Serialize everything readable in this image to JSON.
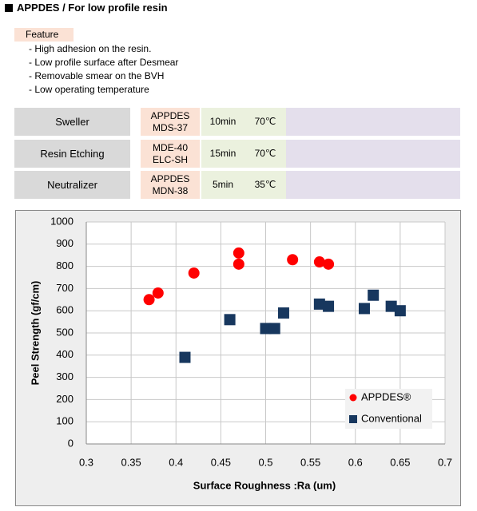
{
  "header": {
    "title": "APPDES / For low profile resin"
  },
  "feature": {
    "label": "Feature",
    "items": [
      "- High adhesion on the resin.",
      "- Low profile surface after Desmear",
      "- Removable smear on the BVH",
      "- Low operating temperature"
    ]
  },
  "process": {
    "rows": [
      {
        "step": "Sweller",
        "product": [
          "APPDES",
          "MDS-37"
        ],
        "time": "10min",
        "temp": "70℃"
      },
      {
        "step": "Resin Etching",
        "product": [
          "MDE-40",
          "ELC-SH"
        ],
        "time": "15min",
        "temp": "70℃"
      },
      {
        "step": "Neutralizer",
        "product": [
          "APPDES",
          "MDN-38"
        ],
        "time": "5min",
        "temp": "35℃"
      }
    ]
  },
  "chart_data": {
    "type": "scatter",
    "x_label": "Surface Roughness :Ra (um)",
    "y_label": "Peel Strength (gf/cm)",
    "xlim": [
      0.3,
      0.7
    ],
    "xticks": [
      0.3,
      0.35,
      0.4,
      0.45,
      0.5,
      0.55,
      0.6,
      0.65,
      0.7
    ],
    "ylim": [
      0,
      1000
    ],
    "yticks": [
      0,
      100,
      200,
      300,
      400,
      500,
      600,
      700,
      800,
      900,
      1000
    ],
    "grid": true,
    "legend": "lower right",
    "series": [
      {
        "name": "APPDES®",
        "color": "#ff0000",
        "marker": "circle",
        "x": [
          0.37,
          0.38,
          0.42,
          0.47,
          0.47,
          0.53,
          0.56,
          0.57
        ],
        "values": [
          650,
          680,
          770,
          860,
          810,
          830,
          820,
          810
        ]
      },
      {
        "name": "Conventional",
        "color": "#17375e",
        "marker": "square",
        "x": [
          0.41,
          0.46,
          0.5,
          0.51,
          0.52,
          0.56,
          0.57,
          0.61,
          0.62,
          0.64,
          0.65
        ],
        "values": [
          390,
          560,
          520,
          520,
          590,
          630,
          620,
          610,
          670,
          620,
          600
        ]
      }
    ]
  }
}
